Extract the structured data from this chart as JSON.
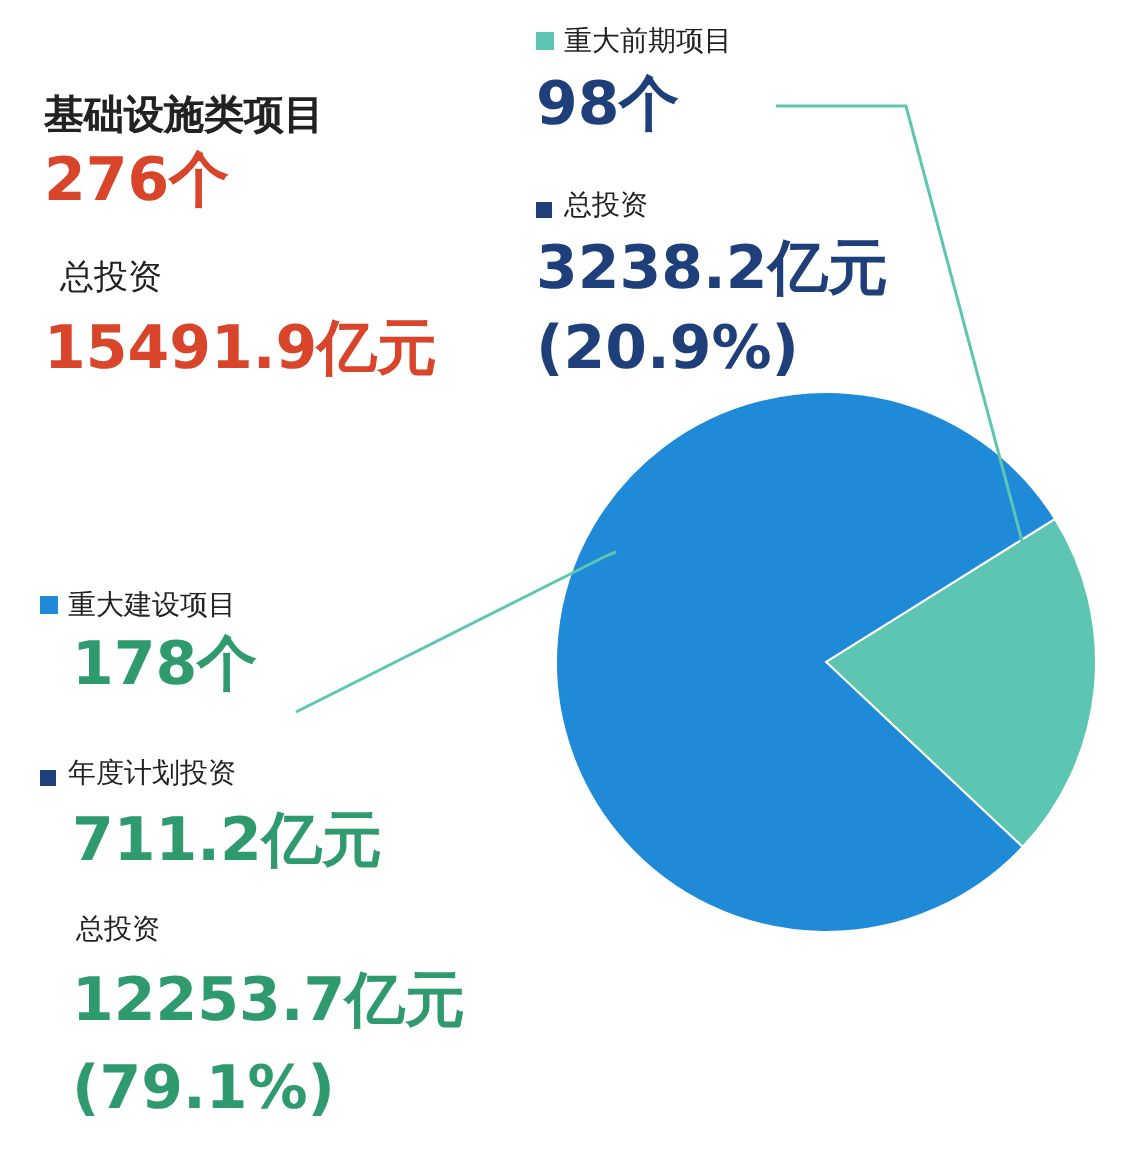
{
  "chart_data": {
    "type": "pie",
    "categories": [
      "重大前期项目",
      "重大建设项目"
    ],
    "values": [
      20.9,
      79.1
    ],
    "colors": [
      "#5cc6b2",
      "#1f8bd8"
    ],
    "legend": "left",
    "annotations": [
      "基础设施类项目",
      "276个",
      "总投资",
      "15491.9亿元",
      "98个",
      "总投资",
      "3238.2亿元",
      "(20.9%)",
      "178个",
      "年度计划投资",
      "711.2亿元",
      "总投资",
      "12253.7亿元",
      "(79.1%)"
    ]
  }
}
